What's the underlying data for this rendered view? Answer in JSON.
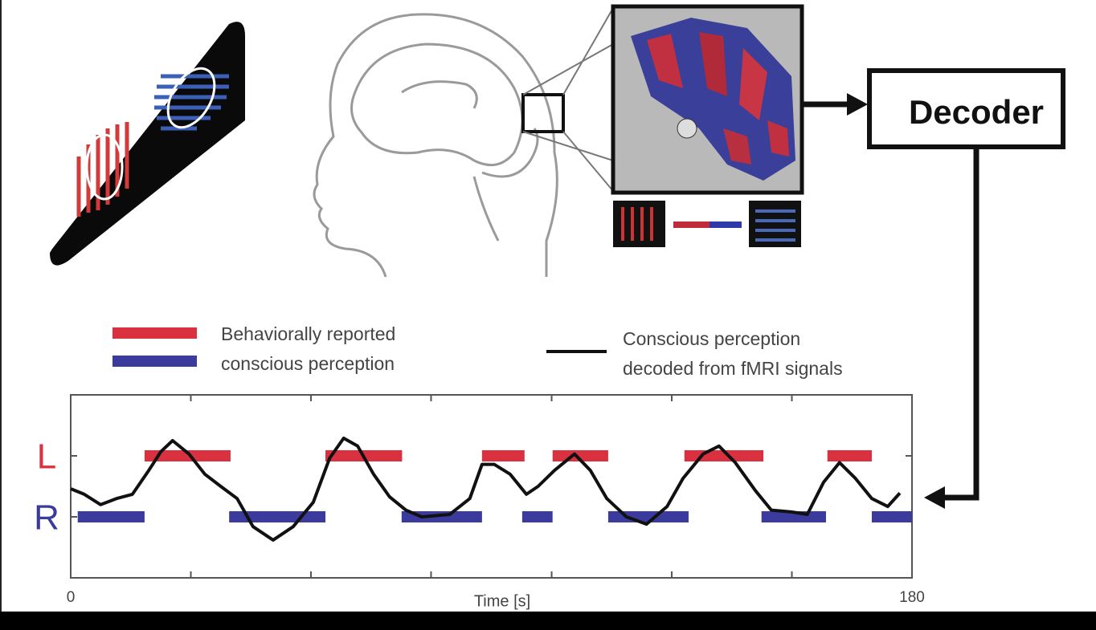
{
  "diagram": {
    "decoder_label": "Decoder"
  },
  "chart_data": {
    "type": "line",
    "xlabel": "Time [s]",
    "xlim": [
      0,
      180
    ],
    "xticks": [
      0,
      180
    ],
    "xticks_minor": [
      25.7,
      51.4,
      77.1,
      102.9,
      128.6,
      154.3
    ],
    "ylim": [
      -1,
      2
    ],
    "yticks": [
      {
        "value": 1,
        "label": "L",
        "color": "#d9313f"
      },
      {
        "value": 0,
        "label": "R",
        "color": "#3b3b9e"
      }
    ],
    "reported": {
      "label_lines": [
        "Behaviorally reported",
        "conscious perception"
      ],
      "periods": [
        {
          "level": 1,
          "color": "#d9313f",
          "intervals": [
            [
              15.8,
              34.2
            ],
            [
              54.5,
              70.9
            ],
            [
              88.0,
              97.1
            ],
            [
              103.1,
              115.0
            ],
            [
              131.3,
              148.2
            ],
            [
              161.9,
              171.4
            ]
          ]
        },
        {
          "level": 0,
          "color": "#3b3b9e",
          "intervals": [
            [
              1.5,
              15.8
            ],
            [
              33.9,
              54.5
            ],
            [
              70.8,
              88.0
            ],
            [
              96.6,
              103.1
            ],
            [
              115.0,
              132.2
            ],
            [
              147.8,
              161.6
            ],
            [
              171.4,
              180.0
            ]
          ]
        }
      ]
    },
    "decoded": {
      "label_lines": [
        "Conscious perception",
        "decoded from fMRI signals"
      ],
      "color": "#111111",
      "x": [
        0,
        2.9,
        6.4,
        9.8,
        13.2,
        16.7,
        19.3,
        21.8,
        25.3,
        28.7,
        32.1,
        35.6,
        39.0,
        43.3,
        47.6,
        51.9,
        55.4,
        58.4,
        61.4,
        64.8,
        68.2,
        71.7,
        75.1,
        81.1,
        85.4,
        88.0,
        90.6,
        94.0,
        97.5,
        100.0,
        103.5,
        107.8,
        111.2,
        114.7,
        118.9,
        123.2,
        127.6,
        131.0,
        135.3,
        138.7,
        142.2,
        146.5,
        149.9,
        154.2,
        157.6,
        161.1,
        164.5,
        167.9,
        171.4,
        174.8,
        177.4
      ],
      "values": [
        0.46,
        0.37,
        0.2,
        0.3,
        0.37,
        0.76,
        1.07,
        1.25,
        1.03,
        0.7,
        0.5,
        0.3,
        -0.16,
        -0.38,
        -0.16,
        0.24,
        0.96,
        1.29,
        1.16,
        0.7,
        0.33,
        0.11,
        0,
        0.04,
        0.3,
        0.86,
        0.86,
        0.7,
        0.37,
        0.5,
        0.76,
        1.03,
        0.76,
        0.3,
        0,
        -0.12,
        0.17,
        0.63,
        1.03,
        1.16,
        0.89,
        0.43,
        0.11,
        0.08,
        0.04,
        0.57,
        0.89,
        0.63,
        0.3,
        0.17,
        0.39
      ]
    }
  }
}
